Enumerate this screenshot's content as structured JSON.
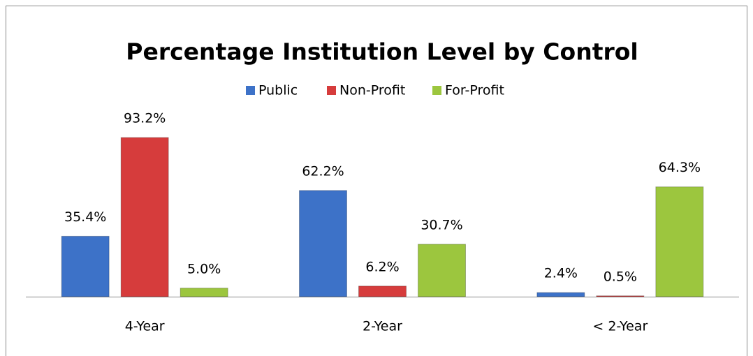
{
  "chart_data": {
    "type": "bar",
    "title": "Percentage Institution Level by Control",
    "categories": [
      "4-Year",
      "2-Year",
      "< 2-Year"
    ],
    "series": [
      {
        "name": "Public",
        "color": "#3d72c8",
        "values": [
          35.4,
          62.2,
          2.4
        ],
        "value_labels": [
          "35.4%",
          "62.2%",
          "2.4%"
        ]
      },
      {
        "name": "Non-Profit",
        "color": "#d63c3c",
        "values": [
          93.2,
          6.2,
          0.5
        ],
        "value_labels": [
          "93.2%",
          "6.2%",
          "0.5%"
        ]
      },
      {
        "name": "For-Profit",
        "color": "#9cc63e",
        "values": [
          5.0,
          30.7,
          64.3
        ],
        "value_labels": [
          "5.0%",
          "30.7%",
          "64.3%"
        ]
      }
    ],
    "legend": "top"
  }
}
